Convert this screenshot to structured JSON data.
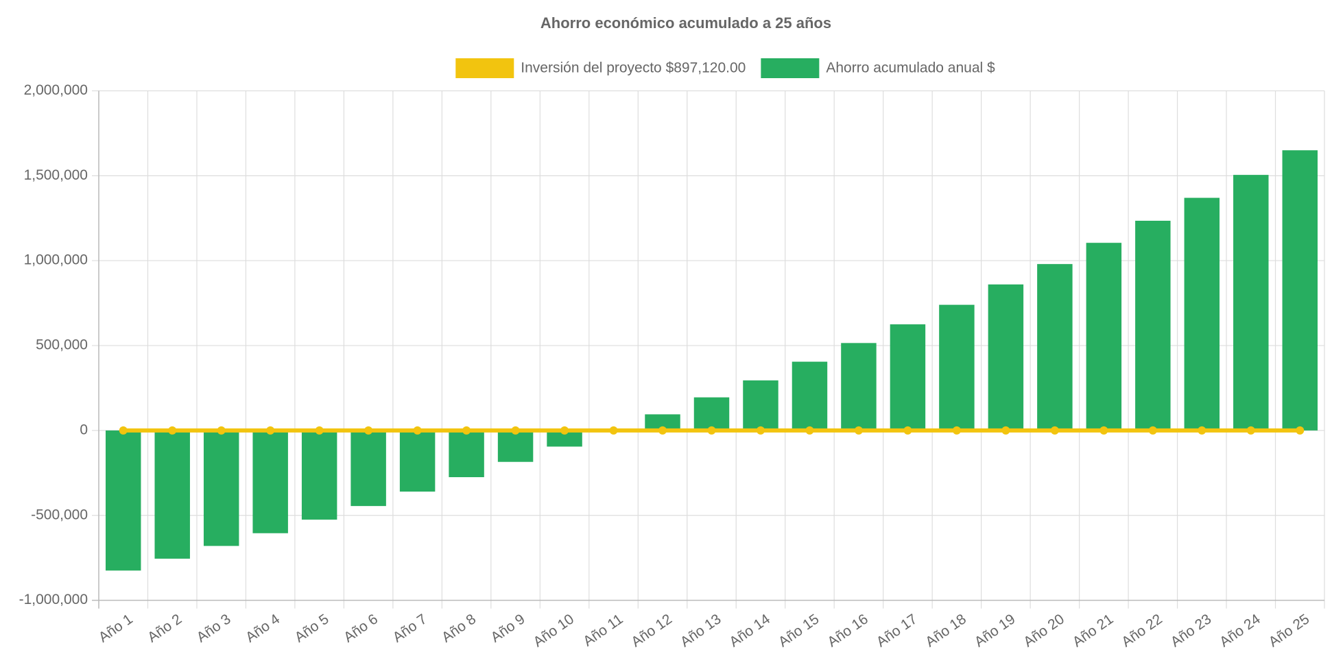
{
  "chart_data": {
    "type": "bar",
    "title": "Ahorro económico acumulado a 25 años",
    "categories": [
      "Año 1",
      "Año 2",
      "Año 3",
      "Año 4",
      "Año 5",
      "Año 6",
      "Año 7",
      "Año 8",
      "Año 9",
      "Año 10",
      "Año 11",
      "Año 12",
      "Año 13",
      "Año 14",
      "Año 15",
      "Año 16",
      "Año 17",
      "Año 18",
      "Año 19",
      "Año 20",
      "Año 21",
      "Año 22",
      "Año 23",
      "Año 24",
      "Año 25"
    ],
    "series": [
      {
        "name": "Inversión del proyecto $897,120.00",
        "type": "line",
        "color": "#f2c40f",
        "values": [
          0,
          0,
          0,
          0,
          0,
          0,
          0,
          0,
          0,
          0,
          0,
          0,
          0,
          0,
          0,
          0,
          0,
          0,
          0,
          0,
          0,
          0,
          0,
          0,
          0
        ]
      },
      {
        "name": "Ahorro acumulado anual $",
        "type": "bar",
        "color": "#27ae60",
        "values": [
          -825000,
          -755000,
          -680000,
          -605000,
          -525000,
          -445000,
          -360000,
          -275000,
          -185000,
          -95000,
          0,
          95000,
          195000,
          295000,
          405000,
          515000,
          625000,
          740000,
          860000,
          980000,
          1105000,
          1235000,
          1370000,
          1505000,
          1650000
        ]
      }
    ],
    "ylim": [
      -1000000,
      2000000
    ],
    "yticks": [
      {
        "value": -1000000,
        "label": "-1,000,000"
      },
      {
        "value": -500000,
        "label": "-500,000"
      },
      0,
      {
        "value": 500000,
        "label": "500,000"
      },
      {
        "value": 1000000,
        "label": "1,000,000"
      },
      {
        "value": 1500000,
        "label": "1,500,000"
      },
      {
        "value": 2000000,
        "label": "2,000,000"
      }
    ],
    "grid": true,
    "legend": "top"
  }
}
